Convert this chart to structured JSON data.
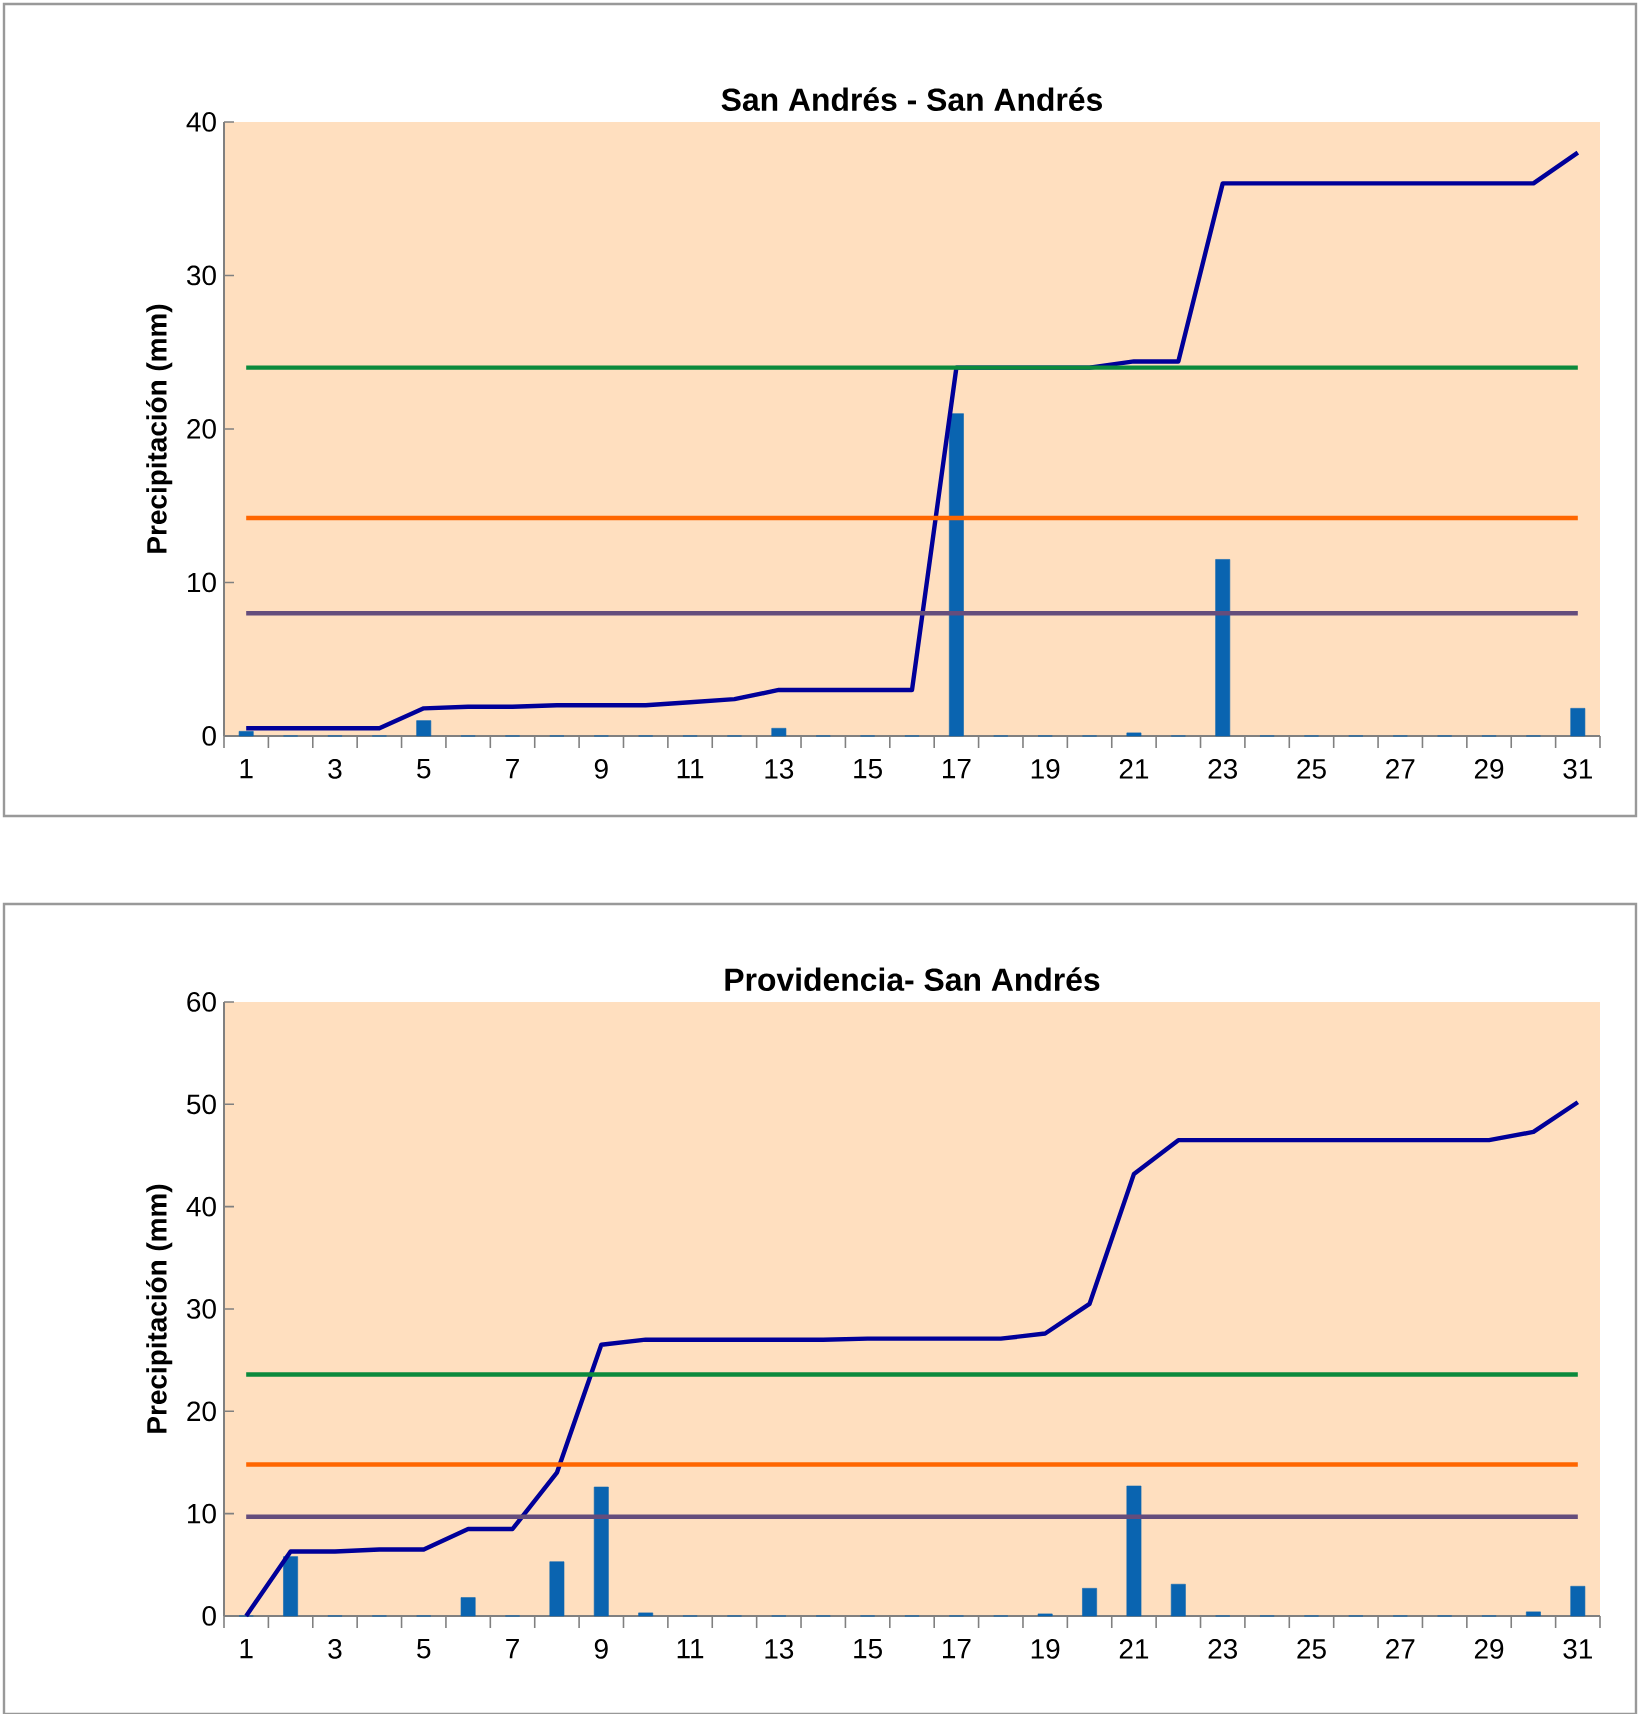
{
  "chart_data": [
    {
      "type": "bar",
      "title": "San Andrés - San Andrés",
      "ylabel": "Precipitación (mm)",
      "categories": [
        "1",
        null,
        "3",
        null,
        "5",
        null,
        "7",
        null,
        "9",
        null,
        "11",
        null,
        "13",
        null,
        "15",
        null,
        "17",
        null,
        "19",
        null,
        "21",
        null,
        "23",
        null,
        "25",
        null,
        "27",
        null,
        "29",
        null,
        "31"
      ],
      "series": [
        {
          "color": "#0a64b0",
          "values": [
            0.3,
            0,
            0,
            0,
            1.0,
            0,
            0,
            0,
            0,
            0,
            0,
            0,
            0.5,
            0,
            0,
            0,
            21,
            0,
            0,
            0,
            0.2,
            0,
            11.5,
            0,
            0,
            0,
            0,
            0,
            0,
            0,
            1.8
          ]
        },
        {
          "type": "line",
          "color": "#000099",
          "values": [
            0.5,
            0.5,
            0.5,
            0.5,
            1.8,
            1.9,
            1.9,
            2.0,
            2.0,
            2.0,
            2.2,
            2.4,
            3.0,
            3.0,
            3.0,
            3.0,
            24,
            24,
            24,
            24,
            24.4,
            24.4,
            36,
            36,
            36,
            36,
            36,
            36,
            36,
            36,
            38
          ]
        }
      ],
      "ylim": [
        0,
        40
      ],
      "yticks": [
        0,
        10,
        20,
        30,
        40
      ],
      "grid": false,
      "ref_lines": [
        {
          "axis": "y",
          "value": 24,
          "color": "#0b8a3c"
        },
        {
          "axis": "y",
          "value": 14.2,
          "color": "#ff6600"
        },
        {
          "axis": "y",
          "value": 8.0,
          "color": "#654d7c"
        }
      ]
    },
    {
      "type": "bar",
      "title": "Providencia- San Andrés",
      "ylabel": "Precipitación (mm)",
      "categories": [
        "1",
        null,
        "3",
        null,
        "5",
        null,
        "7",
        null,
        "9",
        null,
        "11",
        null,
        "13",
        null,
        "15",
        null,
        "17",
        null,
        "19",
        null,
        "21",
        null,
        "23",
        null,
        "25",
        null,
        "27",
        null,
        "29",
        null,
        "31"
      ],
      "series": [
        {
          "color": "#0a64b0",
          "values": [
            0,
            5.8,
            0,
            0,
            0,
            1.8,
            0,
            5.3,
            12.6,
            0.3,
            0,
            0,
            0,
            0,
            0,
            0,
            0,
            0,
            0.2,
            2.7,
            12.7,
            3.1,
            0,
            0,
            0,
            0,
            0,
            0,
            0,
            0.4,
            2.9
          ]
        },
        {
          "type": "line",
          "color": "#000099",
          "values": [
            0,
            6.3,
            6.3,
            6.5,
            6.5,
            8.5,
            8.5,
            14,
            26.5,
            27,
            27,
            27,
            27,
            27,
            27.1,
            27.1,
            27.1,
            27.1,
            27.6,
            30.5,
            43.2,
            46.5,
            46.5,
            46.5,
            46.5,
            46.5,
            46.5,
            46.5,
            46.5,
            47.3,
            50.2
          ]
        }
      ],
      "ylim": [
        0,
        60
      ],
      "yticks": [
        0,
        10,
        20,
        30,
        40,
        50,
        60
      ],
      "grid": false,
      "ref_lines": [
        {
          "axis": "y",
          "value": 23.6,
          "color": "#0b8a3c"
        },
        {
          "axis": "y",
          "value": 14.8,
          "color": "#ff6600"
        },
        {
          "axis": "y",
          "value": 9.7,
          "color": "#654d7c"
        }
      ]
    }
  ]
}
